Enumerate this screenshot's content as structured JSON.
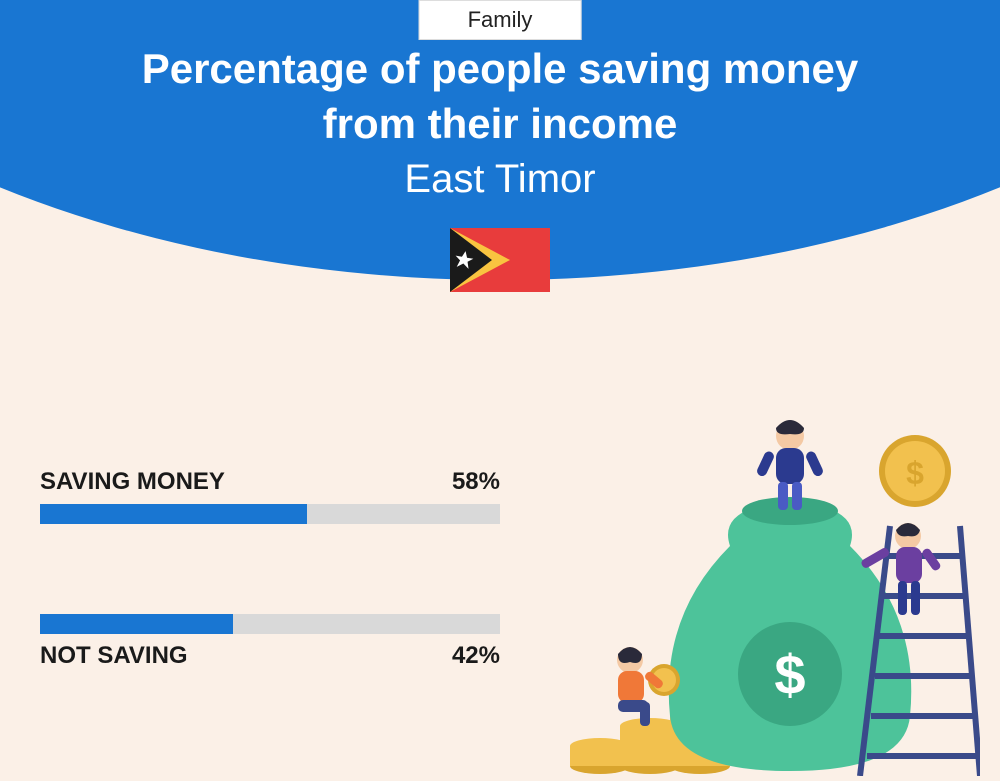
{
  "category": "Family",
  "title_line1": "Percentage of people saving money",
  "title_line2": "from their income",
  "subtitle": "East Timor",
  "colors": {
    "header_bg": "#1976d2",
    "page_bg": "#fbf0e7",
    "bar_fill": "#1976d2",
    "bar_track": "#d9d9d9",
    "title_text": "#ffffff",
    "label_text": "#1a1a1a"
  },
  "flag": {
    "bg": "#e83c3c",
    "tri1": "#f9c440",
    "tri2": "#1a1a1a",
    "star": "#ffffff"
  },
  "bars": [
    {
      "label": "SAVING MONEY",
      "value": 58,
      "display": "58%",
      "label_position": "above"
    },
    {
      "label": "NOT SAVING",
      "value": 42,
      "display": "42%",
      "label_position": "below"
    }
  ],
  "illustration": {
    "bag": "#4dc39a",
    "bag_dark": "#3aa782",
    "coin": "#f2c14e",
    "coin_edge": "#d9a52e",
    "ladder": "#3a4a8a",
    "person1_top": "#2b3a8f",
    "person1_bottom": "#4a5bc4",
    "person2_top": "#6b3fa0",
    "person2_bottom": "#2b3a8f",
    "person3_top": "#f07838",
    "person3_bottom": "#3a4a8a",
    "skin": "#f4c9a4",
    "hair": "#2a2a3a"
  }
}
